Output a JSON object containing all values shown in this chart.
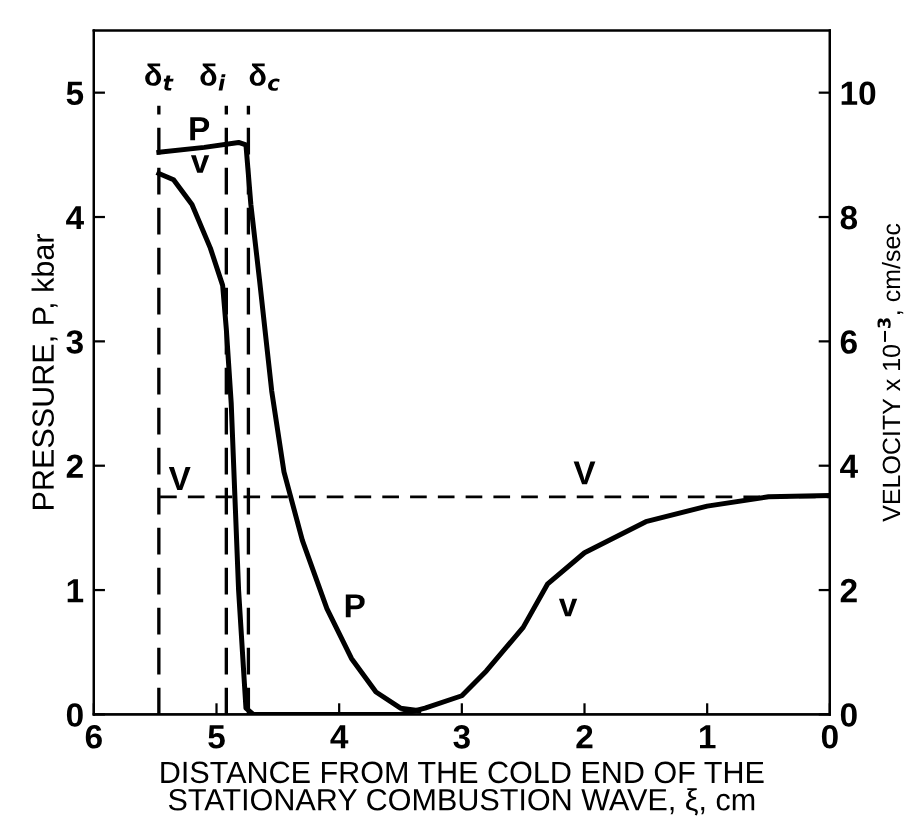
{
  "chart_data": {
    "type": "line",
    "xlabel": "DISTANCE FROM THE COLD END OF THE\nSTATIONARY COMBUSTION WAVE, ξ, cm",
    "ylabel": "PRESSURE, P, kbar",
    "y2label": "VELOCITY x 10$^{−3}$, cm/sec",
    "xlim": [
      6,
      0
    ],
    "xticks": [
      6,
      5,
      4,
      3,
      2,
      1,
      0
    ],
    "ylim": [
      0,
      5.5
    ],
    "yticks": [
      0,
      1,
      2,
      3,
      4,
      5
    ],
    "y2lim": [
      0,
      11
    ],
    "y2ticks": [
      0,
      2,
      4,
      6,
      8,
      10
    ],
    "grid": false,
    "marker": "none",
    "line_style": "solid",
    "series": [
      {
        "color": "#000000",
        "x": [
          5.47,
          5.1,
          4.82,
          4.76,
          4.72,
          4.65,
          4.55,
          4.45,
          4.3,
          4.1,
          3.9,
          3.7,
          3.5,
          3.35
        ],
        "values": [
          4.52,
          4.56,
          4.6,
          4.58,
          4.1,
          3.5,
          2.6,
          1.95,
          1.4,
          0.85,
          0.45,
          0.18,
          0.05,
          0.03
        ]
      },
      {
        "color": "#000000",
        "axis": "y2",
        "x": [
          5.47,
          5.35,
          5.2,
          5.05,
          4.95,
          4.92,
          4.88,
          4.82,
          4.76,
          4.7,
          4.0,
          3.5,
          3.3,
          3.0,
          2.8,
          2.5,
          2.3,
          2.0,
          1.5,
          1.0,
          0.5,
          0
        ],
        "values": [
          8.7,
          8.6,
          8.2,
          7.5,
          6.9,
          6.2,
          5.0,
          2.0,
          0.1,
          0,
          0,
          0,
          0.1,
          0.3,
          0.7,
          1.4,
          2.1,
          2.6,
          3.1,
          3.35,
          3.5,
          3.52
        ]
      }
    ],
    "ref_lines": [
      {
        "axis": "x",
        "value": 5.47,
        "label": "δ$_{t}$",
        "line_style": "dashed",
        "color": "#000000"
      },
      {
        "axis": "x",
        "value": 4.92,
        "label": "δ$_{i}$",
        "line_style": "dashed",
        "color": "#000000"
      },
      {
        "axis": "x",
        "value": 4.74,
        "label": "δ$_{c}$",
        "line_style": "dashed",
        "color": "#000000"
      },
      {
        "axis": "y2",
        "value": 3.5,
        "label": "V",
        "line_style": "dashed",
        "color": "#000000"
      }
    ],
    "annotations": [
      {
        "text": "P",
        "x": 5.3,
        "y": 4.54
      },
      {
        "text": "v",
        "x": 5.3,
        "y": 4.3
      },
      {
        "text": "P",
        "x": 4.1,
        "y": 0.85
      },
      {
        "text": "v",
        "x": 2.3,
        "y": 1.05
      },
      {
        "text": "V",
        "x": 2.0,
        "y": 1.75
      }
    ]
  }
}
